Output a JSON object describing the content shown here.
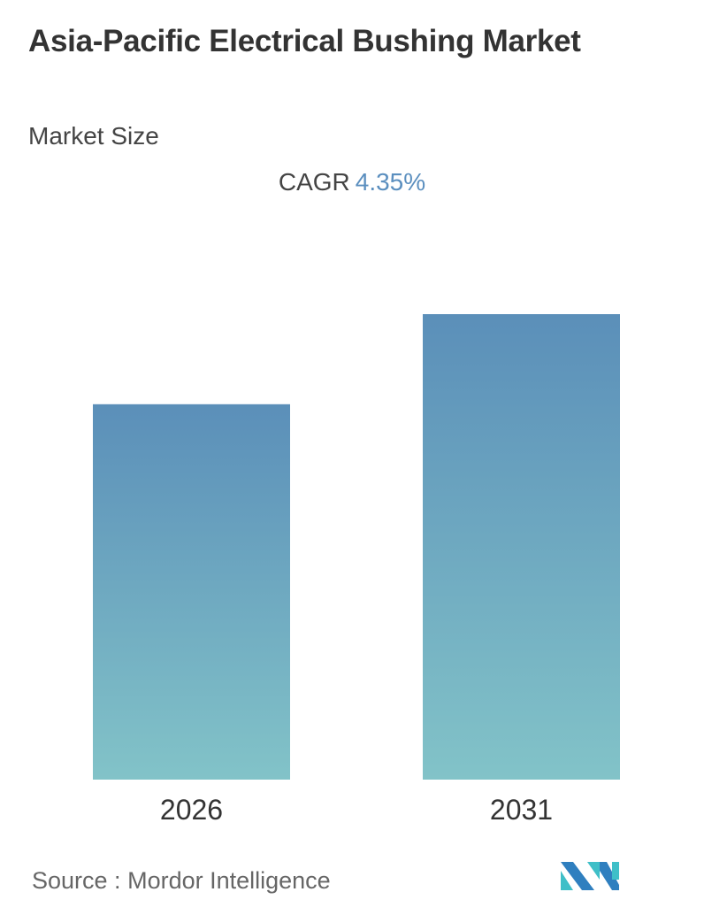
{
  "title": "Asia-Pacific Electrical Bushing Market",
  "subtitle": "Market Size",
  "cagr": {
    "label": "CAGR",
    "value": "4.35%"
  },
  "chart_data": {
    "type": "bar",
    "categories": [
      "2026",
      "2031"
    ],
    "values": [
      1.0,
      1.24
    ],
    "value_note_units": "relative",
    "colors": {
      "bar_top": "#5b8fb9",
      "bar_bottom": "#82c3c8"
    },
    "grid": false
  },
  "source": {
    "label": "Source :",
    "value": "Mordor Intelligence"
  },
  "logo": {
    "colors": [
      "#2f7fbf",
      "#3fbfc8"
    ]
  }
}
